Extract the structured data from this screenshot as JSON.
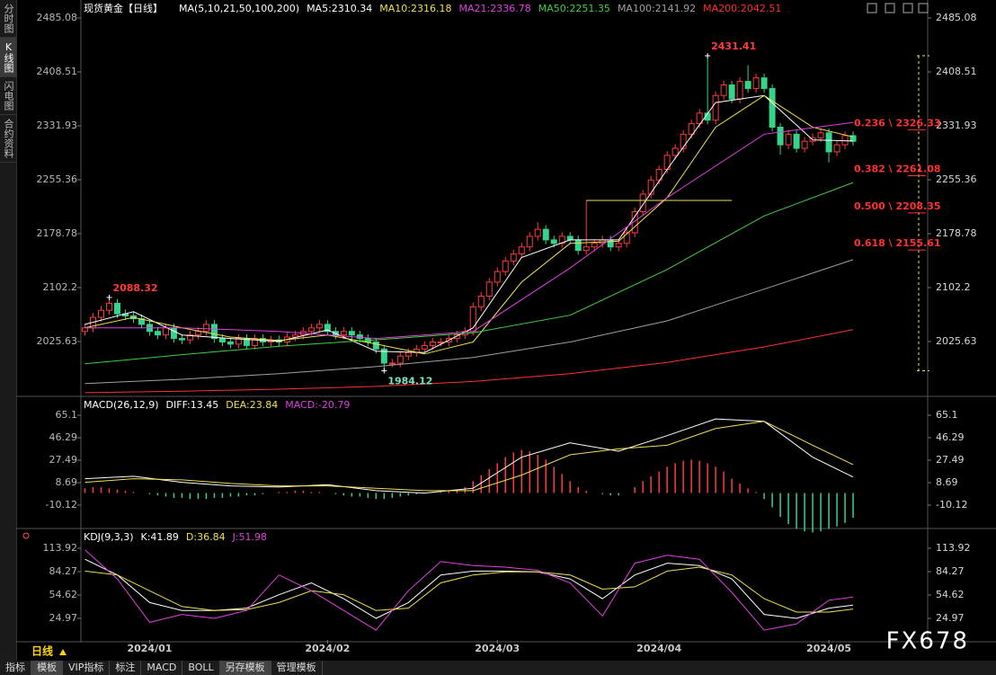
{
  "chart_data": [
    {
      "type": "candlestick",
      "title": "现货黄金【日线】",
      "indicator": "MA(5,10,21,50,100,200)",
      "up_color": "#ff3b3b",
      "down_color": "#35d48a",
      "xlim": [
        -0.5,
        104
      ],
      "ylim": [
        1949.05,
        2510.61
      ],
      "yticks": [
        2025.63,
        2102.2,
        2178.78,
        2255.36,
        2331.93,
        2408.51,
        2485.08
      ],
      "open": [
        2040,
        2045,
        2060,
        2070,
        2080,
        2065,
        2062,
        2058,
        2050,
        2040,
        2035,
        2045,
        2030,
        2028,
        2035,
        2040,
        2050,
        2030,
        2025,
        2022,
        2030,
        2020,
        2030,
        2025,
        2028,
        2025,
        2032,
        2035,
        2040,
        2045,
        2050,
        2040,
        2035,
        2040,
        2035,
        2030,
        2025,
        2015,
        1995,
        1995,
        2005,
        2010,
        2015,
        2020,
        2025,
        2025,
        2030,
        2035,
        2040,
        2075,
        2090,
        2110,
        2125,
        2140,
        2150,
        2160,
        2175,
        2185,
        2170,
        2165,
        2175,
        2170,
        2155,
        2160,
        2165,
        2170,
        2160,
        2165,
        2180,
        2210,
        2235,
        2255,
        2270,
        2290,
        2300,
        2320,
        2335,
        2350,
        2340,
        2375,
        2390,
        2370,
        2395,
        2385,
        2400,
        2385,
        2330,
        2305,
        2320,
        2300,
        2310,
        2315,
        2322,
        2295,
        2305,
        2318
      ],
      "high": [
        2051,
        2066,
        2076,
        2088.32,
        2086,
        2071,
        2068,
        2064,
        2056,
        2046,
        2051,
        2051,
        2036,
        2041,
        2046,
        2056,
        2056,
        2036,
        2031,
        2036,
        2036,
        2036,
        2036,
        2034,
        2034,
        2038,
        2041,
        2046,
        2051,
        2056,
        2056,
        2046,
        2046,
        2046,
        2041,
        2036,
        2031,
        2021,
        2001,
        2011,
        2016,
        2021,
        2026,
        2031,
        2031,
        2036,
        2041,
        2046,
        2081,
        2096,
        2116,
        2131,
        2146,
        2156,
        2166,
        2181,
        2195,
        2191,
        2176,
        2181,
        2181,
        2176,
        2226,
        2171,
        2176,
        2176,
        2171,
        2186,
        2216,
        2241,
        2261,
        2276,
        2296,
        2306,
        2326,
        2341,
        2356,
        2431.41,
        2381,
        2396,
        2396,
        2401,
        2418,
        2406,
        2406,
        2391,
        2336,
        2326,
        2326,
        2316,
        2321,
        2328,
        2328,
        2311,
        2324,
        2324
      ],
      "low": [
        2034,
        2039,
        2054,
        2064,
        2059,
        2056,
        2052,
        2044,
        2034,
        2029,
        2029,
        2024,
        2022,
        2022,
        2029,
        2034,
        2024,
        2019,
        2016,
        2016,
        2014,
        2014,
        2019,
        2019,
        2019,
        2019,
        2026,
        2029,
        2034,
        2039,
        2034,
        2029,
        2029,
        2029,
        2024,
        2019,
        2009,
        1984.12,
        1989,
        1989,
        1999,
        2004,
        2009,
        2014,
        2019,
        2019,
        2024,
        2029,
        2034,
        2069,
        2084,
        2104,
        2119,
        2134,
        2144,
        2154,
        2169,
        2164,
        2159,
        2159,
        2164,
        2149,
        2149,
        2154,
        2159,
        2154,
        2154,
        2159,
        2174,
        2204,
        2229,
        2249,
        2264,
        2284,
        2294,
        2314,
        2329,
        2334,
        2334,
        2369,
        2364,
        2364,
        2379,
        2379,
        2379,
        2324,
        2291,
        2299,
        2294,
        2294,
        2304,
        2309,
        2280,
        2289,
        2299,
        2304
      ],
      "close": [
        2045,
        2060,
        2070,
        2080,
        2065,
        2062,
        2058,
        2050,
        2040,
        2035,
        2045,
        2030,
        2028,
        2035,
        2040,
        2050,
        2030,
        2025,
        2022,
        2030,
        2020,
        2030,
        2025,
        2028,
        2025,
        2032,
        2035,
        2040,
        2045,
        2050,
        2040,
        2035,
        2040,
        2035,
        2030,
        2025,
        2015,
        1995,
        1995,
        2005,
        2010,
        2015,
        2020,
        2025,
        2025,
        2030,
        2035,
        2040,
        2075,
        2090,
        2110,
        2125,
        2140,
        2150,
        2160,
        2175,
        2185,
        2170,
        2165,
        2175,
        2170,
        2155,
        2160,
        2165,
        2170,
        2160,
        2165,
        2180,
        2210,
        2235,
        2255,
        2270,
        2290,
        2300,
        2320,
        2335,
        2350,
        2340,
        2375,
        2390,
        2370,
        2395,
        2385,
        2400,
        2385,
        2330,
        2305,
        2320,
        2300,
        2310,
        2315,
        2322,
        2295,
        2305,
        2318,
        2310
      ],
      "lines": [
        {
          "label": "MA5:2310.34",
          "color": "#ffffff",
          "x": [
            0,
            6,
            12,
            18,
            24,
            30,
            36,
            42,
            48,
            54,
            60,
            66,
            72,
            78,
            84,
            90,
            95
          ],
          "values": [
            2050,
            2068,
            2035,
            2030,
            2026,
            2042,
            2012,
            2010,
            2045,
            2145,
            2170,
            2170,
            2270,
            2365,
            2375,
            2312,
            2310.34
          ]
        },
        {
          "label": "MA10:2316.18",
          "color": "#f0e050",
          "x": [
            0,
            6,
            12,
            18,
            24,
            30,
            36,
            42,
            48,
            54,
            60,
            66,
            72,
            78,
            84,
            90,
            95
          ],
          "values": [
            2045,
            2060,
            2045,
            2032,
            2027,
            2035,
            2022,
            2008,
            2025,
            2110,
            2165,
            2168,
            2230,
            2330,
            2375,
            2330,
            2316.18
          ]
        },
        {
          "label": "MA21:2336.78",
          "color": "#e040e0",
          "x": [
            0,
            12,
            24,
            36,
            48,
            60,
            72,
            84,
            95
          ],
          "values": [
            2045,
            2045,
            2040,
            2030,
            2040,
            2130,
            2230,
            2320,
            2336.78
          ]
        },
        {
          "label": "MA50:2251.35",
          "color": "#40d040",
          "x": [
            0,
            12,
            24,
            36,
            48,
            60,
            72,
            84,
            95
          ],
          "values": [
            1994,
            2007,
            2019,
            2028,
            2038,
            2063,
            2128,
            2204,
            2251.35
          ]
        },
        {
          "label": "MA100:2141.92",
          "color": "#a0a0a0",
          "x": [
            0,
            12,
            24,
            36,
            48,
            60,
            72,
            84,
            95
          ],
          "values": [
            1966,
            1972,
            1980,
            1990,
            2003,
            2025,
            2055,
            2100,
            2141.92
          ]
        },
        {
          "label": "MA200:2042.51",
          "color": "#ff3030",
          "x": [
            0,
            12,
            24,
            36,
            48,
            60,
            72,
            84,
            95
          ],
          "values": [
            1953,
            1955,
            1958,
            1962,
            1969,
            1980,
            1996,
            2018,
            2042.51
          ]
        }
      ],
      "hline": {
        "value": 2226,
        "from": 62,
        "to": 80,
        "color": "#e8e060"
      },
      "fib_levels": [
        {
          "label": "0.236 \\ 2326.33",
          "value": 2326.33
        },
        {
          "label": "0.382 \\ 2261.08",
          "value": 2261.08
        },
        {
          "label": "0.500 \\ 2208.35",
          "value": 2208.35
        },
        {
          "label": "0.618 \\ 2155.61",
          "value": 2155.61
        }
      ],
      "fib_color": "#ff3030"
    },
    {
      "type": "macd",
      "title": "MACD(26,12,9)",
      "xlim": [
        -0.5,
        104
      ],
      "ylim": [
        -29.67,
        75.63
      ],
      "yticks": [
        -10.12,
        8.69,
        27.49,
        46.29,
        65.1
      ],
      "hist_label": "MACD:-20.79",
      "hist_label_color": "#e040e0",
      "up_color": "#ff3b3b",
      "down_color": "#35d48a",
      "hist": [
        4,
        5,
        5,
        4,
        3,
        2,
        1,
        0,
        -1,
        -2,
        -3,
        -4,
        -4,
        -5,
        -5,
        -5,
        -4,
        -4,
        -3,
        -3,
        -2,
        -2,
        -1,
        0,
        1,
        1,
        2,
        2,
        1,
        1,
        0,
        -1,
        -2,
        -3,
        -3,
        -4,
        -5,
        -5,
        -4,
        -3,
        -2,
        -1,
        0,
        1,
        1,
        2,
        3,
        5,
        10,
        15,
        20,
        25,
        30,
        34,
        36,
        35,
        32,
        28,
        22,
        16,
        10,
        5,
        2,
        0,
        -1,
        -2,
        -2,
        0,
        5,
        10,
        14,
        18,
        22,
        25,
        27,
        28,
        27,
        25,
        22,
        18,
        12,
        8,
        4,
        1,
        -5,
        -12,
        -20,
        -26,
        -30,
        -32,
        -33,
        -32,
        -30,
        -28,
        -25,
        -20.79
      ],
      "lines": [
        {
          "label": "DIFF:13.45",
          "color": "#ffffff",
          "x": [
            0,
            6,
            12,
            18,
            24,
            30,
            36,
            42,
            48,
            54,
            60,
            66,
            72,
            78,
            84,
            90,
            95
          ],
          "values": [
            12,
            14,
            9,
            6,
            5,
            7,
            2,
            0,
            4,
            30,
            42,
            35,
            48,
            62,
            60,
            30,
            13.45
          ]
        },
        {
          "label": "DEA:23.84",
          "color": "#f0e050",
          "x": [
            0,
            6,
            12,
            18,
            24,
            30,
            36,
            42,
            48,
            54,
            60,
            66,
            72,
            78,
            84,
            90,
            95
          ],
          "values": [
            9,
            12,
            11,
            8,
            6,
            6,
            4,
            2,
            2,
            15,
            32,
            37,
            40,
            54,
            60,
            40,
            23.84
          ]
        }
      ]
    },
    {
      "type": "kdj",
      "title": "KDJ(9,3,3)",
      "xlim": [
        -0.5,
        104
      ],
      "ylim": [
        -2.4,
        134.45
      ],
      "yticks": [
        24.97,
        54.62,
        84.27,
        113.92
      ],
      "xticks": [
        {
          "value": 8,
          "label": "2024/01"
        },
        {
          "value": 30,
          "label": "2024/02"
        },
        {
          "value": 51,
          "label": "2024/03"
        },
        {
          "value": 71,
          "label": "2024/04"
        },
        {
          "value": 92,
          "label": "2024/05"
        }
      ],
      "lines": [
        {
          "label": "K:41.89",
          "color": "#ffffff",
          "x": [
            0,
            4,
            8,
            12,
            16,
            20,
            24,
            28,
            32,
            36,
            40,
            44,
            48,
            52,
            56,
            60,
            64,
            68,
            72,
            76,
            80,
            84,
            88,
            92,
            95
          ],
          "values": [
            100,
            80,
            45,
            35,
            35,
            38,
            55,
            70,
            50,
            25,
            45,
            80,
            85,
            85,
            84,
            75,
            50,
            80,
            95,
            92,
            75,
            30,
            25,
            38,
            41.89
          ]
        },
        {
          "label": "D:36.84",
          "color": "#f0e050",
          "x": [
            0,
            4,
            8,
            12,
            16,
            20,
            24,
            28,
            32,
            36,
            40,
            44,
            48,
            52,
            56,
            60,
            64,
            68,
            72,
            76,
            80,
            84,
            88,
            92,
            95
          ],
          "values": [
            85,
            80,
            60,
            40,
            35,
            36,
            45,
            60,
            55,
            35,
            38,
            70,
            80,
            84,
            84,
            80,
            62,
            65,
            85,
            90,
            80,
            50,
            33,
            33,
            36.84
          ]
        },
        {
          "label": "J:51.98",
          "color": "#e040e0",
          "x": [
            0,
            4,
            8,
            12,
            16,
            20,
            24,
            28,
            32,
            36,
            40,
            44,
            48,
            52,
            56,
            60,
            64,
            68,
            72,
            76,
            80,
            84,
            88,
            92,
            95
          ],
          "values": [
            112,
            75,
            20,
            30,
            25,
            35,
            80,
            60,
            35,
            10,
            60,
            97,
            92,
            90,
            86,
            70,
            28,
            95,
            105,
            100,
            58,
            10,
            18,
            48,
            51.98
          ]
        }
      ]
    }
  ],
  "sidebar": [
    "分时图",
    "K线图",
    "闪电图",
    "合约资料"
  ],
  "status": "日线",
  "toolbar": [
    "指标",
    "模板",
    "VIP指标",
    "标注",
    "MACD",
    "BOLL",
    "另存模板",
    "管理模板"
  ],
  "watermark": "FX678"
}
